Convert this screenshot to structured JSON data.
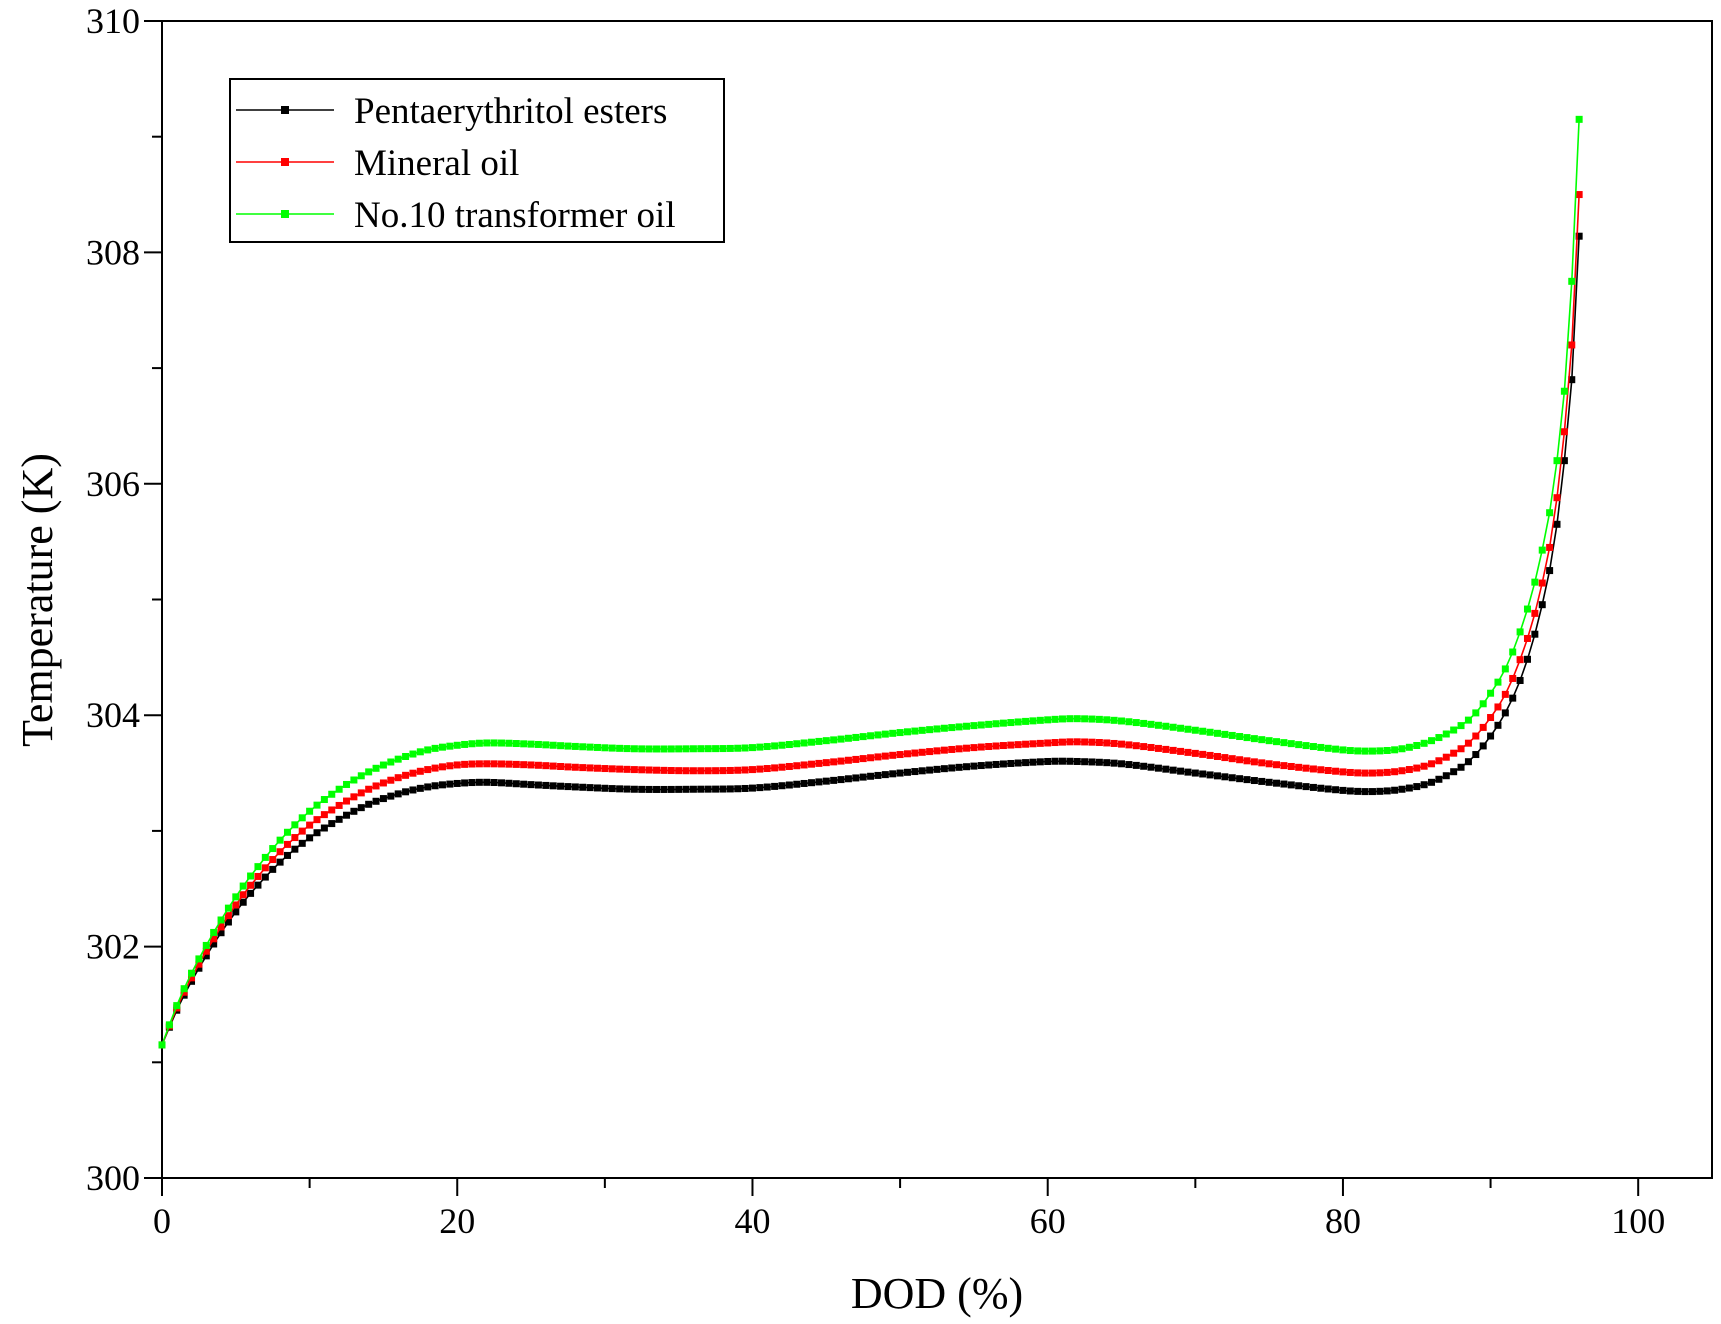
{
  "chart_data": {
    "type": "line",
    "title": "",
    "xlabel": "DOD (%)",
    "ylabel": "Temperature (K)",
    "xlim": [
      0,
      100
    ],
    "ylim": [
      300,
      310
    ],
    "xticks": [
      0,
      20,
      40,
      60,
      80,
      100
    ],
    "yticks": [
      300,
      302,
      304,
      306,
      308,
      310
    ],
    "grid": false,
    "legend_position": "top-left",
    "series": [
      {
        "name": "Pentaerythritol esters",
        "color": "#000000",
        "x": [
          0,
          1,
          2,
          3,
          4,
          5,
          6,
          8,
          10,
          12,
          14,
          16,
          18,
          20,
          22,
          25,
          28,
          32,
          36,
          40,
          45,
          50,
          55,
          60,
          62,
          65,
          70,
          75,
          80,
          82,
          84,
          86,
          88,
          89,
          90,
          91,
          92,
          93,
          94,
          94.5,
          95,
          95.5,
          96
        ],
        "y": [
          301.15,
          301.45,
          301.7,
          301.92,
          302.12,
          302.3,
          302.46,
          302.73,
          302.94,
          303.1,
          303.23,
          303.32,
          303.38,
          303.41,
          303.42,
          303.4,
          303.38,
          303.36,
          303.36,
          303.37,
          303.43,
          303.5,
          303.56,
          303.6,
          303.6,
          303.58,
          303.5,
          303.42,
          303.35,
          303.34,
          303.36,
          303.42,
          303.55,
          303.66,
          303.82,
          304.02,
          304.3,
          304.7,
          305.25,
          305.65,
          306.2,
          306.9,
          308.14
        ]
      },
      {
        "name": "Mineral oil",
        "color": "#ff0000",
        "x": [
          0,
          1,
          2,
          3,
          4,
          5,
          6,
          8,
          10,
          12,
          14,
          16,
          18,
          20,
          22,
          25,
          28,
          32,
          36,
          40,
          45,
          50,
          55,
          60,
          62,
          65,
          70,
          75,
          80,
          82,
          84,
          86,
          88,
          89,
          90,
          91,
          92,
          93,
          94,
          94.5,
          95,
          95.5,
          96
        ],
        "y": [
          301.15,
          301.47,
          301.73,
          301.96,
          302.17,
          302.36,
          302.53,
          302.82,
          303.05,
          303.22,
          303.36,
          303.46,
          303.53,
          303.57,
          303.58,
          303.57,
          303.55,
          303.53,
          303.52,
          303.53,
          303.59,
          303.66,
          303.72,
          303.76,
          303.77,
          303.75,
          303.67,
          303.58,
          303.51,
          303.5,
          303.52,
          303.58,
          303.71,
          303.82,
          303.98,
          304.18,
          304.48,
          304.88,
          305.45,
          305.88,
          306.45,
          307.2,
          308.5
        ]
      },
      {
        "name": "No.10 transformer oil",
        "color": "#00ff00",
        "x": [
          0,
          1,
          2,
          3,
          4,
          5,
          6,
          8,
          10,
          12,
          14,
          16,
          18,
          20,
          22,
          25,
          28,
          32,
          36,
          40,
          45,
          50,
          55,
          60,
          62,
          65,
          70,
          75,
          80,
          82,
          84,
          86,
          88,
          89,
          90,
          91,
          92,
          93,
          94,
          94.5,
          95,
          95.5,
          96
        ],
        "y": [
          301.15,
          301.49,
          301.77,
          302.01,
          302.23,
          302.43,
          302.61,
          302.92,
          303.17,
          303.36,
          303.51,
          303.62,
          303.7,
          303.74,
          303.76,
          303.75,
          303.73,
          303.71,
          303.71,
          303.72,
          303.78,
          303.85,
          303.91,
          303.96,
          303.97,
          303.95,
          303.87,
          303.78,
          303.7,
          303.69,
          303.71,
          303.78,
          303.91,
          304.02,
          304.19,
          304.4,
          304.72,
          305.15,
          305.75,
          306.2,
          306.8,
          307.75,
          309.15
        ]
      }
    ]
  }
}
